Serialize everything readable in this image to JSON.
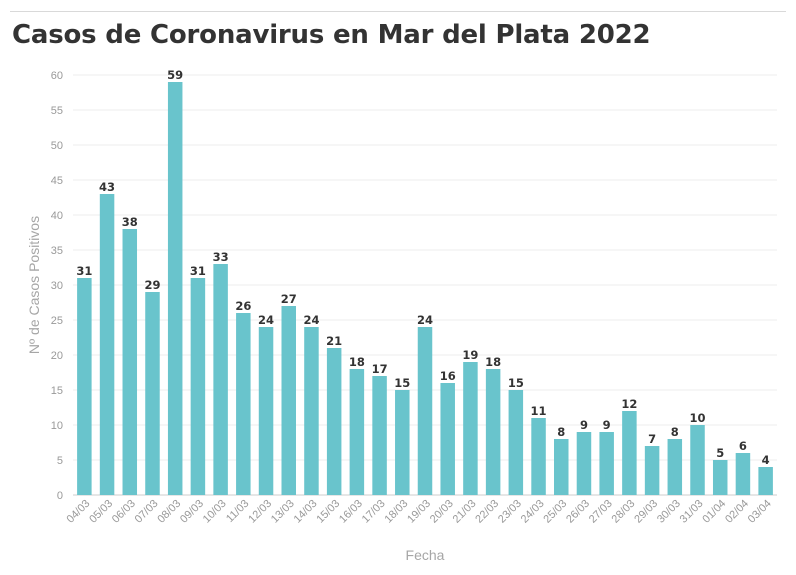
{
  "title": "Casos de Coronavirus en Mar del Plata 2022",
  "chart_data": {
    "type": "bar",
    "title": "Casos de Coronavirus en Mar del Plata 2022",
    "xlabel": "Fecha",
    "ylabel": "Nº de Casos Positivos",
    "ylim": [
      0,
      60
    ],
    "yticks": [
      0,
      5,
      10,
      15,
      20,
      25,
      30,
      35,
      40,
      45,
      50,
      55,
      60
    ],
    "grid": true,
    "bar_color": "#69c4cc",
    "categories": [
      "04/03",
      "05/03",
      "06/03",
      "07/03",
      "08/03",
      "09/03",
      "10/03",
      "11/03",
      "12/03",
      "13/03",
      "14/03",
      "15/03",
      "16/03",
      "17/03",
      "18/03",
      "19/03",
      "20/03",
      "21/03",
      "22/03",
      "23/03",
      "24/03",
      "25/03",
      "26/03",
      "27/03",
      "28/03",
      "29/03",
      "30/03",
      "31/03",
      "01/04",
      "02/04",
      "03/04"
    ],
    "values": [
      31,
      43,
      38,
      29,
      59,
      31,
      33,
      26,
      24,
      27,
      24,
      21,
      18,
      17,
      15,
      24,
      16,
      19,
      18,
      15,
      11,
      8,
      9,
      9,
      12,
      7,
      8,
      10,
      5,
      6,
      4
    ]
  }
}
